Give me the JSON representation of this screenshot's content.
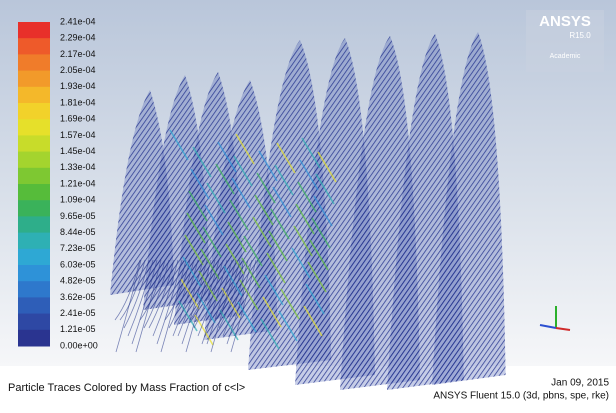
{
  "colorbar": {
    "labels": [
      "2.41e-04",
      "2.29e-04",
      "2.17e-04",
      "2.05e-04",
      "1.93e-04",
      "1.81e-04",
      "1.69e-04",
      "1.57e-04",
      "1.45e-04",
      "1.33e-04",
      "1.21e-04",
      "1.09e-04",
      "9.65e-05",
      "8.44e-05",
      "7.23e-05",
      "6.03e-05",
      "4.82e-05",
      "3.62e-05",
      "2.41e-05",
      "1.21e-05",
      "0.00e+00"
    ],
    "colors": [
      "#e8302a",
      "#ee5a2a",
      "#f07c2a",
      "#f29a2a",
      "#f4b82a",
      "#f2d22a",
      "#e6e02a",
      "#c8dc2a",
      "#a4d42e",
      "#7ec832",
      "#56bc3a",
      "#3ab25a",
      "#2eae8a",
      "#2eb0b4",
      "#2ea8d4",
      "#2e92d8",
      "#2e78cc",
      "#2e5eb8",
      "#2e48a4",
      "#2a3490"
    ]
  },
  "logo": {
    "name": "ANSYS",
    "release": "R15.0",
    "edition": "Academic"
  },
  "footer": {
    "caption": "Particle Traces Colored by Mass Fraction of c<l>",
    "date": "Jan 09, 2015",
    "solver": "ANSYS Fluent 15.0 (3d, pbns, spe, rke)"
  }
}
